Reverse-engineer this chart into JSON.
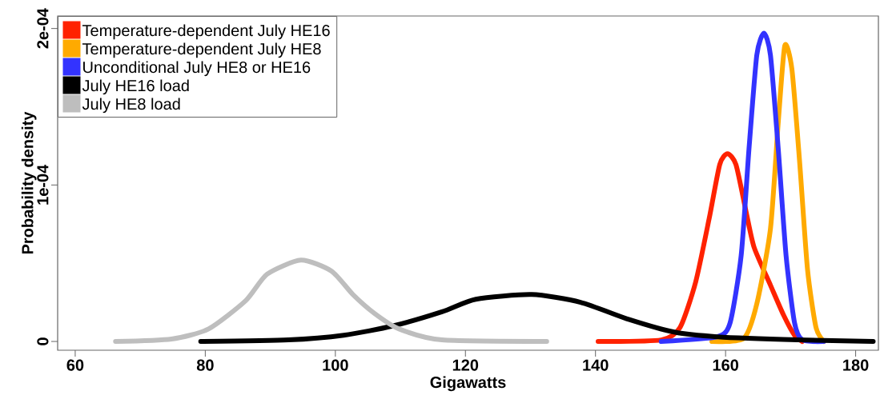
{
  "chart_data": {
    "type": "line",
    "xlabel": "Gigawatts",
    "ylabel": "Probability density",
    "xlim": [
      57.3,
      183.5
    ],
    "ylim": [
      -5.6e-06,
      0.000208
    ],
    "xticks": [
      60,
      80,
      100,
      120,
      140,
      160,
      180
    ],
    "yticks": [
      0,
      {
        "value": 0.0001,
        "label": "1e-04"
      },
      {
        "value": 0.0002,
        "label": "2e-04"
      }
    ],
    "legend": "top left",
    "series": [
      {
        "name": "Temperature-dependent July HE16",
        "color": "#ff2200",
        "x": [
          140.4,
          150.1,
          153.0,
          155.4,
          157.5,
          159.1,
          160.3,
          161.6,
          163.2,
          164.4,
          166.9,
          168.9,
          170.6,
          171.8
        ],
        "values": [
          0,
          1e-06,
          9e-06,
          3.8e-05,
          7.9e-05,
          0.000113,
          0.00012,
          0.000113,
          8.2e-05,
          6e-05,
          3.6e-05,
          1.7e-05,
          4e-06,
          0
        ]
      },
      {
        "name": "Temperature-dependent July HE8",
        "color": "#ffaa00",
        "x": [
          157.9,
          162.8,
          164.8,
          166.9,
          168.1,
          169.1,
          170.2,
          171.4,
          172.6,
          173.9,
          175.1
        ],
        "values": [
          0,
          2e-06,
          2.4e-05,
          7.2e-05,
          0.00014,
          0.000189,
          0.000174,
          0.000114,
          4.6e-05,
          9e-06,
          0
        ]
      },
      {
        "name": "Unconditional July HE8 or HE16",
        "color": "#3333ff",
        "x": [
          150.1,
          158.7,
          160.7,
          162.4,
          163.6,
          164.8,
          165.9,
          166.9,
          168.1,
          169.3,
          170.6,
          171.8,
          175.1
        ],
        "values": [
          0,
          3e-06,
          1.2e-05,
          5.5e-05,
          0.000123,
          0.000183,
          0.000197,
          0.000183,
          0.000123,
          5.5e-05,
          1.2e-05,
          1e-06,
          0
        ]
      },
      {
        "name": "July HE16 load",
        "color": "#000000",
        "x": [
          79.3,
          92.8,
          101.3,
          108.9,
          116.4,
          121.6,
          130.2,
          137.7,
          145.2,
          152.1,
          158.7,
          171.0,
          182.7
        ],
        "values": [
          0,
          1e-06,
          4e-06,
          1e-05,
          1.9e-05,
          2.7e-05,
          3e-05,
          2.5e-05,
          1.4e-05,
          6e-06,
          3e-06,
          1e-06,
          0
        ]
      },
      {
        "name": "July HE8 load",
        "color": "#bebebe",
        "x": [
          66.2,
          74.8,
          80.5,
          86.2,
          89.5,
          94.7,
          99.4,
          102.7,
          106.0,
          109.8,
          116.4,
          132.5
        ],
        "values": [
          0,
          1.6e-06,
          8e-06,
          2.6e-05,
          4.3e-05,
          5.2e-05,
          4.5e-05,
          3e-05,
          1.8e-05,
          8e-06,
          1e-06,
          0
        ]
      }
    ]
  }
}
